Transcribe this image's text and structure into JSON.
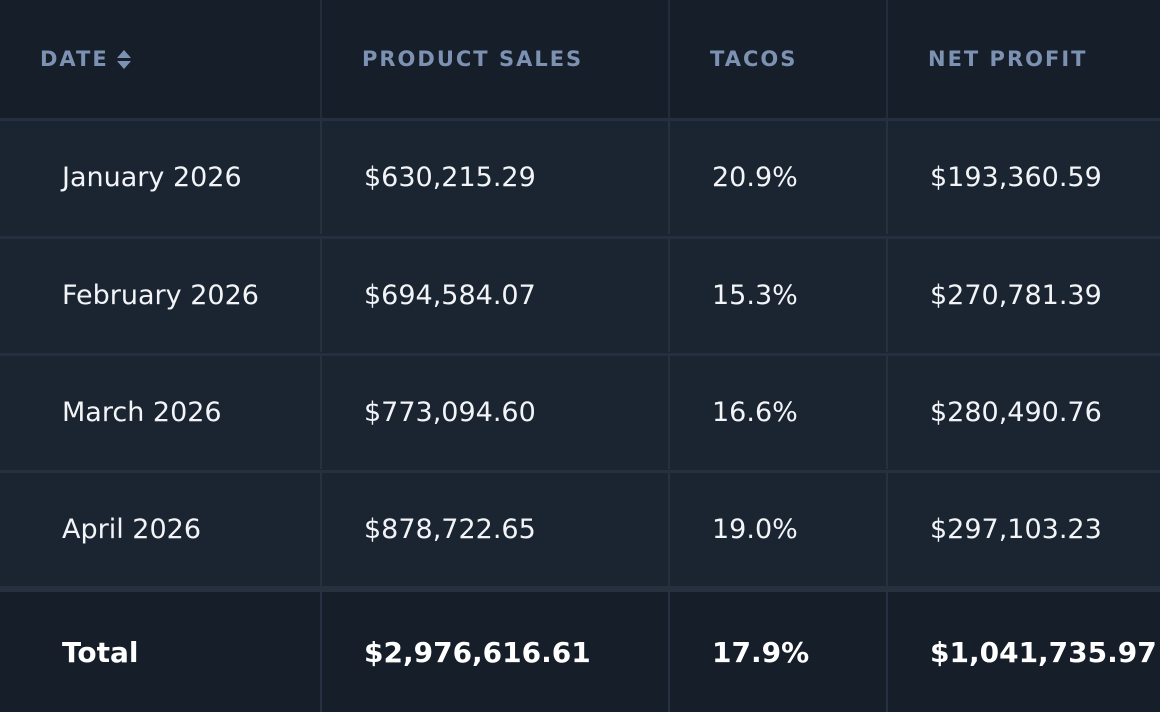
{
  "table": {
    "headers": [
      {
        "label": "DATE",
        "sortable": true
      },
      {
        "label": "PRODUCT SALES"
      },
      {
        "label": "TACOS"
      },
      {
        "label": "NET PROFIT"
      }
    ],
    "rows": [
      {
        "date": "January 2026",
        "product_sales": "$630,215.29",
        "tacos": "20.9%",
        "net_profit": "$193,360.59"
      },
      {
        "date": "February 2026",
        "product_sales": "$694,584.07",
        "tacos": "15.3%",
        "net_profit": "$270,781.39"
      },
      {
        "date": "March 2026",
        "product_sales": "$773,094.60",
        "tacos": "16.6%",
        "net_profit": "$280,490.76"
      },
      {
        "date": "April 2026",
        "product_sales": "$878,722.65",
        "tacos": "19.0%",
        "net_profit": "$297,103.23"
      }
    ],
    "total": {
      "label": "Total",
      "product_sales": "$2,976,616.61",
      "tacos": "17.9%",
      "net_profit": "$1,041,735.97"
    }
  },
  "colors": {
    "background": "#1b2532",
    "header_background": "#161e29",
    "header_text": "#7d92b2",
    "body_text": "#f2f4f7"
  },
  "icons": {
    "sort": "sort-updown-icon"
  }
}
